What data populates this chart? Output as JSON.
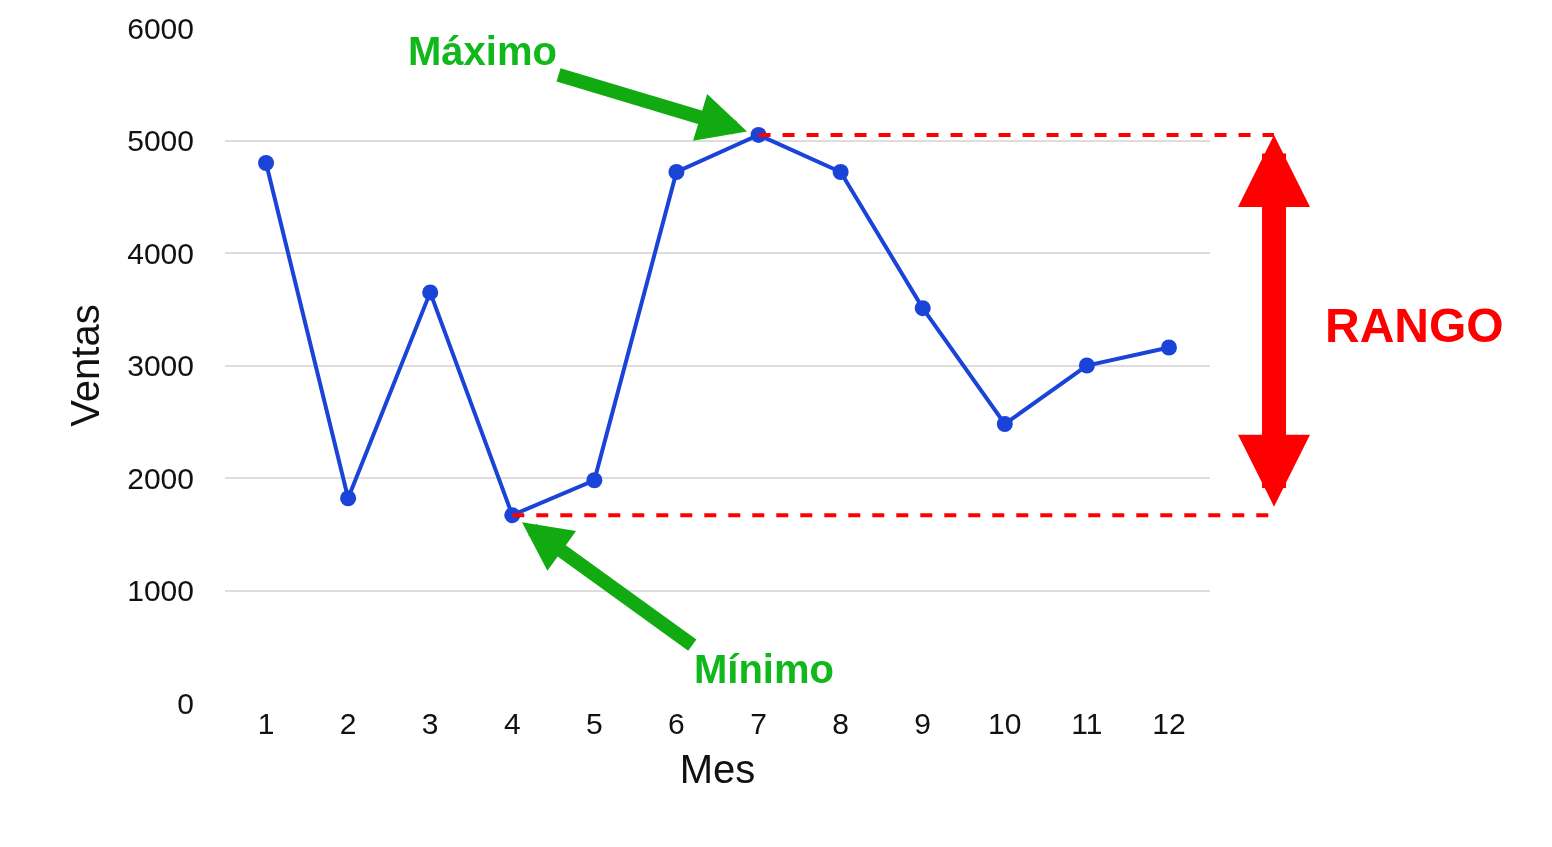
{
  "chart_data": {
    "type": "line",
    "xlabel": "Mes",
    "ylabel": "Ventas",
    "x": [
      1,
      2,
      3,
      4,
      5,
      6,
      7,
      8,
      9,
      10,
      11,
      12
    ],
    "series": [
      {
        "color": "#1a44d8",
        "values": [
          4800,
          1820,
          3650,
          1670,
          1980,
          4720,
          5050,
          4720,
          3510,
          2480,
          3000,
          3160
        ]
      }
    ],
    "xlim": [
      0.5,
      12.5
    ],
    "xticks": [
      1,
      2,
      3,
      4,
      5,
      6,
      7,
      8,
      9,
      10,
      11,
      12
    ],
    "ylim": [
      0,
      6000
    ],
    "yticks": [
      0,
      1000,
      2000,
      3000,
      4000,
      5000,
      6000
    ],
    "grid": "y",
    "legend": false,
    "marker": "circle",
    "line_style": "solid",
    "ref_lines": [
      {
        "axis": "y",
        "value": 5050,
        "color": "#ff0000",
        "line_style": "dashed"
      },
      {
        "axis": "y",
        "value": 1670,
        "color": "#ff0000",
        "line_style": "dashed"
      }
    ],
    "annotations": [
      {
        "text": "Máximo",
        "x": 7,
        "y": 5050
      },
      {
        "text": "Mínimo",
        "x": 4,
        "y": 1670
      },
      "RANGO"
    ]
  }
}
